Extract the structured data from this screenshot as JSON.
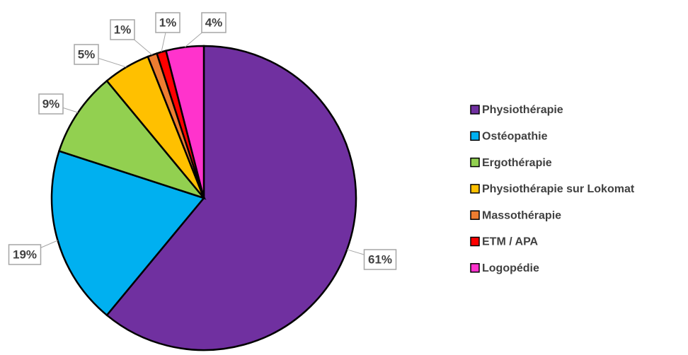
{
  "chart_data": {
    "type": "pie",
    "categories": [
      "Physiothérapie",
      "Ostéopathie",
      "Ergothérapie",
      "Physiothérapie sur Lokomat",
      "Massothérapie",
      "ETM / APA",
      "Logopédie"
    ],
    "values": [
      61,
      19,
      9,
      5,
      1,
      1,
      4
    ],
    "value_labels": [
      "61%",
      "19%",
      "9%",
      "5%",
      "1%",
      "1%",
      "4%"
    ],
    "colors": [
      "#7030a0",
      "#00b0f0",
      "#92d050",
      "#ffc000",
      "#ed7d31",
      "#ff0000",
      "#ff33cc"
    ],
    "legend": "right"
  }
}
